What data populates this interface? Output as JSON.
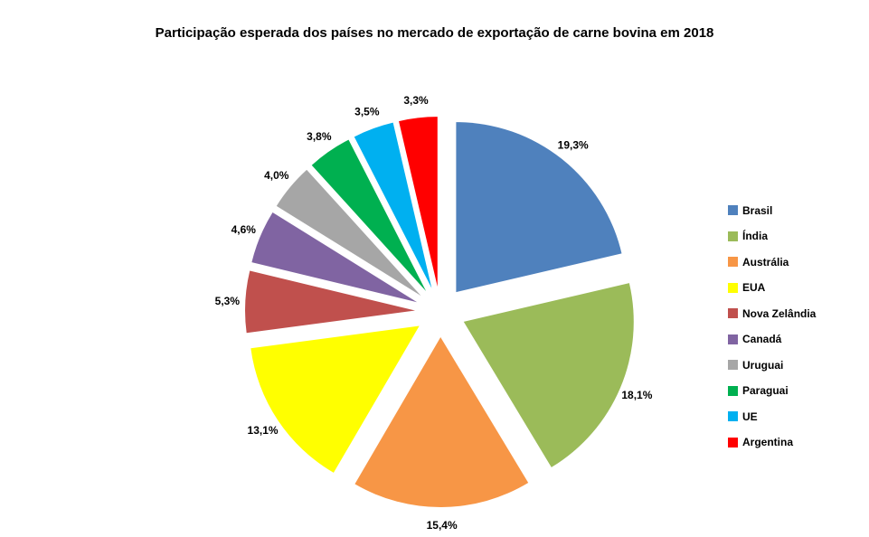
{
  "chart_data": {
    "type": "pie",
    "title": "Participação esperada dos países no mercado de exportação de carne bovina em 2018",
    "unit": "%",
    "decimal_separator": ",",
    "legend_position": "right",
    "exploded": true,
    "start_angle_deg": 0,
    "direction": "clockwise",
    "slices": [
      {
        "name": "Brasil",
        "value": 19.3,
        "label": "19,3%",
        "color": "#4F81BD"
      },
      {
        "name": "Índia",
        "value": 18.1,
        "label": "18,1%",
        "color": "#9BBB59"
      },
      {
        "name": "Austrália",
        "value": 15.4,
        "label": "15,4%",
        "color": "#F79646"
      },
      {
        "name": "EUA",
        "value": 13.1,
        "label": "13,1%",
        "color": "#FFFF00"
      },
      {
        "name": "Nova Zelândia",
        "value": 5.3,
        "label": "5,3%",
        "color": "#C0504D"
      },
      {
        "name": "Canadá",
        "value": 4.6,
        "label": "4,6%",
        "color": "#8064A2"
      },
      {
        "name": "Uruguai",
        "value": 4.0,
        "label": "4,0%",
        "color": "#A6A6A6"
      },
      {
        "name": "Paraguai",
        "value": 3.8,
        "label": "3,8%",
        "color": "#00B050"
      },
      {
        "name": "UE",
        "value": 3.5,
        "label": "3,5%",
        "color": "#00B0F0"
      },
      {
        "name": "Argentina",
        "value": 3.3,
        "label": "3,3%",
        "color": "#FF0000"
      }
    ]
  }
}
